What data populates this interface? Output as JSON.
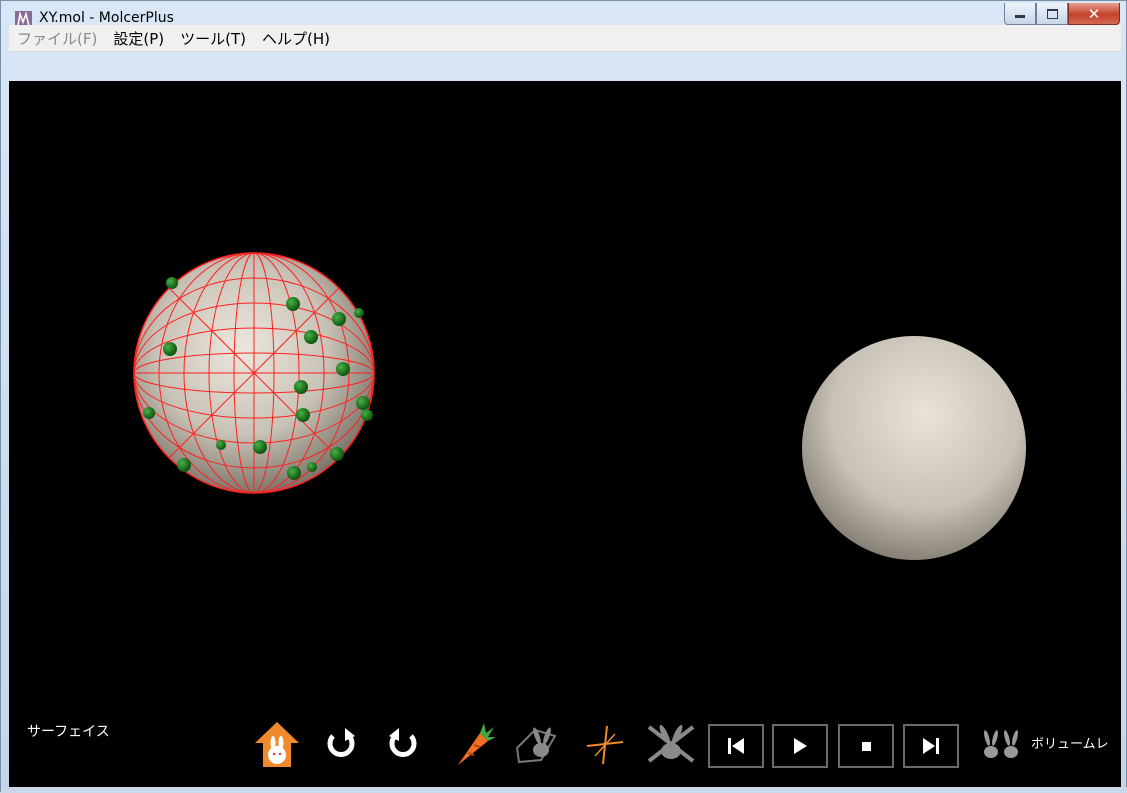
{
  "window": {
    "title": "XY.mol - MolcerPlus"
  },
  "menu": {
    "items": [
      {
        "label": "ファイル(F)",
        "disabled": true
      },
      {
        "label": "設定(P)",
        "disabled": false
      },
      {
        "label": "ツール(T)",
        "disabled": false
      },
      {
        "label": "ヘルプ(H)",
        "disabled": false
      }
    ]
  },
  "viewport": {
    "background": "#000000",
    "mode_label": "サーフェイス"
  },
  "toolbar": {
    "tools": [
      "home-icon",
      "rotate-clockwise-icon",
      "rotate-counterclockwise-icon",
      "carrot-icon",
      "rabbit-camera-icon",
      "axis-cross-icon",
      "rabbit-off-icon"
    ],
    "media": [
      "skip-back-icon",
      "play-icon",
      "stop-icon",
      "skip-forward-icon"
    ],
    "volume_label": "ボリュームレ"
  },
  "colors": {
    "mesh": "#ff2020",
    "atoms": "#1f7a1f",
    "sphere": "#cfc8bd",
    "accent_orange": "#f08a2c"
  }
}
